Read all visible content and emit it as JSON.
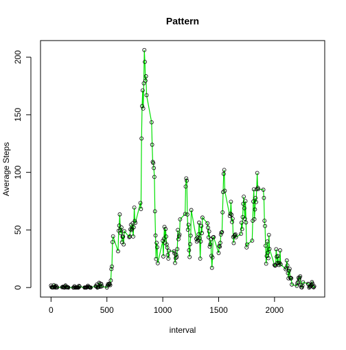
{
  "chart_data": {
    "type": "line",
    "title": "Pattern",
    "x_label": "interval",
    "y_label": "Average Steps",
    "x": [
      0,
      5,
      10,
      15,
      20,
      25,
      30,
      35,
      40,
      45,
      50,
      55,
      100,
      105,
      110,
      115,
      120,
      125,
      130,
      135,
      140,
      145,
      150,
      155,
      200,
      205,
      210,
      215,
      220,
      225,
      230,
      235,
      240,
      245,
      250,
      255,
      300,
      305,
      310,
      315,
      320,
      325,
      330,
      335,
      340,
      345,
      350,
      355,
      400,
      405,
      410,
      415,
      420,
      425,
      430,
      435,
      440,
      445,
      450,
      455,
      500,
      505,
      510,
      515,
      520,
      525,
      530,
      535,
      540,
      545,
      550,
      555,
      600,
      605,
      610,
      615,
      620,
      625,
      630,
      635,
      640,
      645,
      650,
      655,
      700,
      705,
      710,
      715,
      720,
      725,
      730,
      735,
      740,
      745,
      750,
      755,
      800,
      805,
      810,
      815,
      820,
      825,
      830,
      835,
      840,
      845,
      850,
      855,
      900,
      905,
      910,
      915,
      920,
      925,
      930,
      935,
      940,
      945,
      950,
      955,
      1000,
      1005,
      1010,
      1015,
      1020,
      1025,
      1030,
      1035,
      1040,
      1045,
      1050,
      1055,
      1100,
      1105,
      1110,
      1115,
      1120,
      1125,
      1130,
      1135,
      1140,
      1145,
      1150,
      1155,
      1200,
      1205,
      1210,
      1215,
      1220,
      1225,
      1230,
      1235,
      1240,
      1245,
      1250,
      1255,
      1300,
      1305,
      1310,
      1315,
      1320,
      1325,
      1330,
      1335,
      1340,
      1345,
      1350,
      1355,
      1400,
      1405,
      1410,
      1415,
      1420,
      1425,
      1430,
      1435,
      1440,
      1445,
      1450,
      1455,
      1500,
      1505,
      1510,
      1515,
      1520,
      1525,
      1530,
      1535,
      1540,
      1545,
      1550,
      1555,
      1600,
      1605,
      1610,
      1615,
      1620,
      1625,
      1630,
      1635,
      1640,
      1645,
      1650,
      1655,
      1700,
      1705,
      1710,
      1715,
      1720,
      1725,
      1730,
      1735,
      1740,
      1745,
      1750,
      1755,
      1800,
      1805,
      1810,
      1815,
      1820,
      1825,
      1830,
      1835,
      1840,
      1845,
      1850,
      1855,
      1900,
      1905,
      1910,
      1915,
      1920,
      1925,
      1930,
      1935,
      1940,
      1945,
      1950,
      1955,
      2000,
      2005,
      2010,
      2015,
      2020,
      2025,
      2030,
      2035,
      2040,
      2045,
      2050,
      2055,
      2100,
      2105,
      2110,
      2115,
      2120,
      2125,
      2130,
      2135,
      2140,
      2145,
      2150,
      2155,
      2200,
      2205,
      2210,
      2215,
      2220,
      2225,
      2230,
      2235,
      2240,
      2245,
      2250,
      2255,
      2300,
      2305,
      2310,
      2315,
      2320,
      2325,
      2330,
      2335,
      2340,
      2345,
      2350,
      2355
    ],
    "values": [
      1.7,
      0.3,
      0.1,
      0.2,
      0.1,
      2.1,
      0.5,
      0.9,
      0,
      1.5,
      0.3,
      0.1,
      0.3,
      0.7,
      0.2,
      0.3,
      0,
      1.1,
      1.8,
      0.2,
      0.2,
      0.4,
      0.3,
      0,
      0,
      0,
      1.1,
      0,
      0,
      0.1,
      0,
      0.2,
      0,
      0,
      1.5,
      0.9,
      0,
      0,
      0,
      0,
      0.2,
      0.6,
      1.6,
      0.6,
      0.5,
      0.1,
      0,
      0,
      1.2,
      0.9,
      2.6,
      0,
      0.3,
      0.4,
      4.1,
      0.7,
      3.5,
      0.8,
      3.1,
      1.1,
      0,
      1.6,
      3,
      2.2,
      3.3,
      3,
      2.1,
      6.1,
      16,
      18.3,
      39.5,
      44.5,
      31.5,
      49.3,
      53.8,
      63.5,
      50,
      47.1,
      52.2,
      39.3,
      44,
      44.2,
      37.4,
      49,
      43.8,
      44.4,
      50.5,
      54.5,
      49.9,
      51,
      55.7,
      44.3,
      52.3,
      69.5,
      57.8,
      56.2,
      73.4,
      68.2,
      129.4,
      157.5,
      171.2,
      155.4,
      177.3,
      206.2,
      195.9,
      179.6,
      183.4,
      167,
      143.5,
      124,
      109.1,
      108.1,
      103.7,
      96,
      66.2,
      45.2,
      24.8,
      38.8,
      35,
      21.1,
      40.6,
      27,
      42.4,
      52.7,
      38.9,
      50.8,
      44.3,
      37.4,
      34.7,
      28.3,
      25.1,
      31.9,
      31.4,
      29.7,
      21.3,
      25.5,
      28.4,
      26.5,
      33.4,
      50,
      42,
      44.6,
      46,
      59.2,
      63.9,
      87.7,
      94.8,
      92.8,
      63.4,
      50.2,
      54.5,
      32.4,
      26.5,
      37.7,
      45.1,
      67.3,
      42.3,
      39.9,
      43.3,
      41,
      46.2,
      56.4,
      42.8,
      25.1,
      40,
      53.5,
      47.3,
      60.8,
      55.8,
      52,
      43.6,
      48.7,
      35.5,
      37.5,
      41.8,
      27.5,
      17.1,
      26.1,
      43.6,
      43.8,
      30,
      36.1,
      35.5,
      38.8,
      46,
      47.8,
      48.1,
      65.3,
      82.9,
      98.7,
      102.1,
      84,
      62.1,
      64.1,
      74.5,
      63.2,
      56.9,
      59.8,
      43.9,
      38.6,
      44.7,
      45.5,
      46.2,
      43.7,
      46.6,
      56.3,
      50.7,
      61.2,
      72.7,
      78.9,
      68.9,
      59.7,
      75.1,
      56.5,
      34.8,
      37.5,
      40.7,
      58,
      74.7,
      85.3,
      59.3,
      67.8,
      77.7,
      74.2,
      85.3,
      99.5,
      86.6,
      85.6,
      84.9,
      77.8,
      58,
      53.4,
      36.3,
      20.7,
      27.4,
      40,
      30.2,
      25.5,
      45.7,
      33.5,
      19.6,
      19,
      19.3,
      33.3,
      26.8,
      21.2,
      27.3,
      21.3,
      19.5,
      21.3,
      32.3,
      20.2,
      15.9,
      17.2,
      23.5,
      19.2,
      12.5,
      8,
      14.7,
      16.3,
      8.7,
      7.8,
      8.1,
      2.6,
      1.5,
      3.7,
      4.8,
      8.5,
      7.1,
      8.7,
      9.8,
      2.2,
      0.3,
      0.1,
      1.6,
      4.6,
      3.3,
      2.8,
      0,
      0.8,
      1,
      1.6,
      2.6,
      4.7,
      3.3,
      0.6,
      0.2,
      1.1
    ],
    "color": "#00e000",
    "point_color": "#000000",
    "xlim": [
      -94.2,
      2449.2
    ],
    "xticks": [
      0,
      500,
      1000,
      1500,
      2000
    ],
    "ylim": [
      -8.25,
      214.4
    ],
    "yticks": [
      0,
      50,
      100,
      150,
      200
    ]
  }
}
